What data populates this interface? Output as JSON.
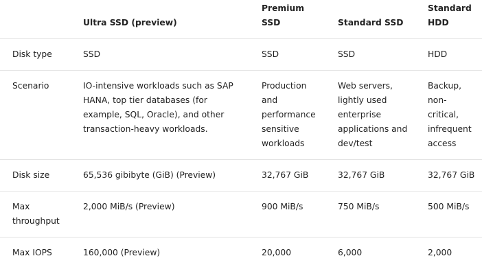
{
  "table": {
    "header": [
      "Ultra SSD (preview)",
      "Premium SSD",
      "Standard SSD",
      "Standard HDD"
    ],
    "rows": [
      [
        "Disk type",
        "SSD",
        "SSD",
        "SSD",
        "HDD"
      ],
      [
        "Scenario",
        "IO-intensive workloads such as SAP HANA, top tier databases (for example, SQL, Oracle), and other transaction-heavy workloads.",
        "Production and performance sensitive workloads",
        "Web servers, lightly used enterprise applications and dev/test",
        "Backup, non-critical, infrequent access"
      ],
      [
        "Disk size",
        "65,536 gibibyte (GiB) (Preview)",
        "32,767 GiB",
        "32,767 GiB",
        "32,767 GiB"
      ],
      [
        "Max throughput",
        "2,000 MiB/s (Preview)",
        "900 MiB/s",
        "750 MiB/s",
        "500 MiB/s"
      ],
      [
        "Max IOPS",
        "160,000 (Preview)",
        "20,000",
        "6,000",
        "2,000"
      ]
    ]
  }
}
